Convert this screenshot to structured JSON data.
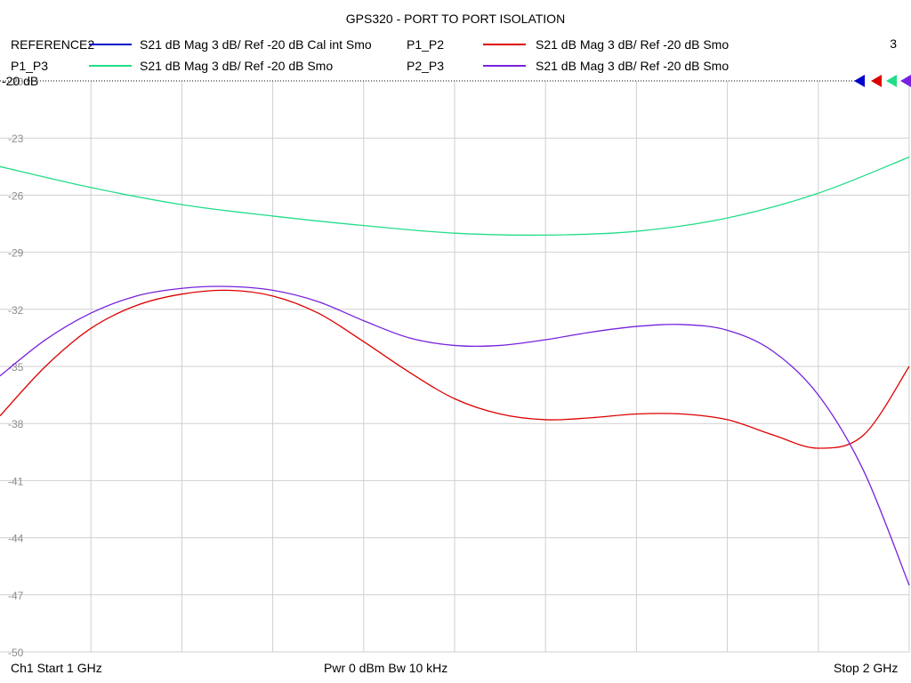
{
  "title": "GPS320 - PORT TO PORT ISOLATION",
  "channel_number": "3",
  "legend": [
    {
      "name": "REFERENCE2",
      "desc": "S21  dB Mag  3 dB/ Ref -20 dB  Cal int Smo",
      "color": "#0000cc"
    },
    {
      "name": "P1_P2",
      "desc": "S21  dB Mag  3 dB/ Ref -20 dB  Smo",
      "color": "#dd0000"
    },
    {
      "name": "P1_P3",
      "desc": "S21  dB Mag  3 dB/ Ref -20 dB  Smo",
      "color": "#22dd88"
    },
    {
      "name": "P2_P3",
      "desc": "S21  dB Mag  3 dB/ Ref -20 dB  Smo",
      "color": "#7722dd"
    }
  ],
  "footer": {
    "start": "Ch1  Start  1 GHz",
    "power": "Pwr  0 dBm  Bw  10 kHz",
    "stop": "Stop  2 GHz"
  },
  "ref_label": "-20 dB",
  "chart_data": {
    "type": "line",
    "xlim": [
      1,
      2
    ],
    "x_unit": "GHz",
    "ylim": [
      -50,
      -20
    ],
    "yticks": [
      -20,
      -23,
      -26,
      -29,
      -32,
      -35,
      -38,
      -41,
      -44,
      -47,
      -50
    ],
    "ytick_labels": [
      "-20",
      "-23",
      "-26",
      "-29",
      "-32",
      "-35",
      "-38",
      "-41",
      "-44",
      "-47",
      "-50"
    ],
    "x_divisions": 10,
    "grid": true,
    "legend_position": "top",
    "series": [
      {
        "name": "P1_P3",
        "color": "#22dd88",
        "x": [
          1.0,
          1.1,
          1.2,
          1.3,
          1.4,
          1.5,
          1.6,
          1.7,
          1.8,
          1.9,
          2.0
        ],
        "y": [
          -24.5,
          -25.6,
          -26.5,
          -27.1,
          -27.6,
          -28.0,
          -28.1,
          -27.9,
          -27.2,
          -25.9,
          -24.0
        ]
      },
      {
        "name": "P1_P2",
        "color": "#dd0000",
        "x": [
          1.0,
          1.05,
          1.1,
          1.15,
          1.2,
          1.25,
          1.3,
          1.35,
          1.4,
          1.45,
          1.5,
          1.55,
          1.6,
          1.65,
          1.7,
          1.75,
          1.8,
          1.85,
          1.9,
          1.95,
          2.0
        ],
        "y": [
          -37.6,
          -35.0,
          -33.0,
          -31.8,
          -31.2,
          -31.0,
          -31.3,
          -32.2,
          -33.7,
          -35.3,
          -36.7,
          -37.5,
          -37.8,
          -37.7,
          -37.5,
          -37.5,
          -37.8,
          -38.6,
          -39.3,
          -38.6,
          -35.0
        ]
      },
      {
        "name": "P2_P3",
        "color": "#7722dd",
        "x": [
          1.0,
          1.05,
          1.1,
          1.15,
          1.2,
          1.25,
          1.3,
          1.35,
          1.4,
          1.45,
          1.5,
          1.55,
          1.6,
          1.65,
          1.7,
          1.75,
          1.8,
          1.85,
          1.9,
          1.95,
          2.0
        ],
        "y": [
          -35.5,
          -33.6,
          -32.2,
          -31.3,
          -30.9,
          -30.8,
          -31.0,
          -31.6,
          -32.6,
          -33.5,
          -33.9,
          -33.9,
          -33.6,
          -33.2,
          -32.9,
          -32.8,
          -33.1,
          -34.2,
          -36.5,
          -40.5,
          -46.5
        ]
      }
    ]
  }
}
